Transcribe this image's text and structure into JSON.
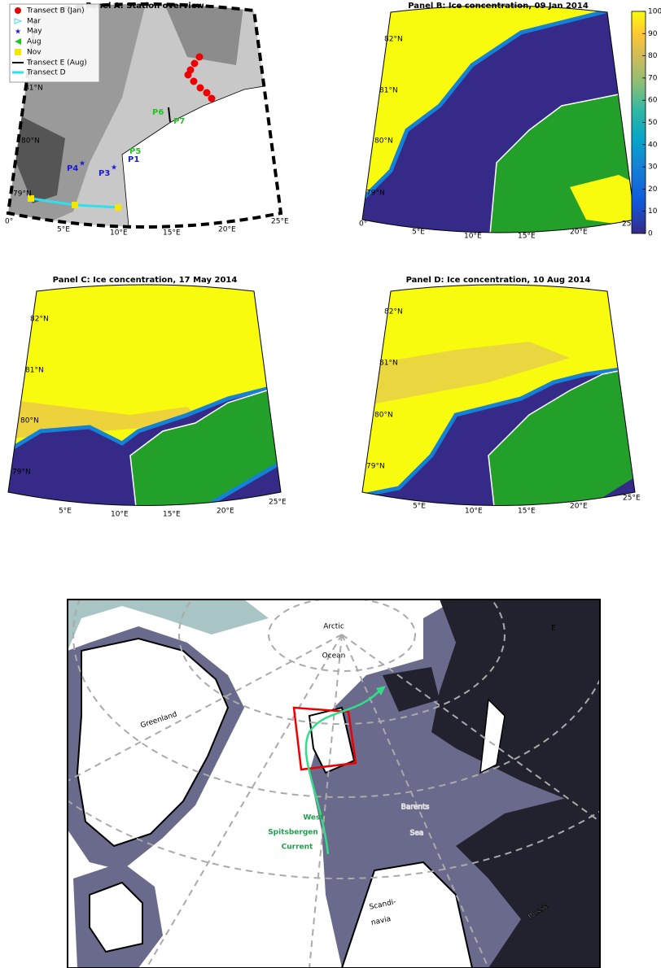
{
  "panel_a": {
    "title": "Panel A: Station overview",
    "legend": [
      "Transect B (Jan)",
      "Mar",
      "May",
      "Aug",
      "Nov",
      "Transect E (Aug)",
      "Transect D"
    ],
    "stations": [
      "P1",
      "P3",
      "P4",
      "P5",
      "P6",
      "P7"
    ],
    "lat_labels": [
      "81°N",
      "80°N",
      "79°N"
    ],
    "lon_labels": [
      "0°",
      "5°E",
      "10°E",
      "15°E",
      "20°E",
      "25°E"
    ]
  },
  "panel_b": {
    "title": "Panel B: Ice concentration, 09 Jan 2014",
    "lat_labels": [
      "82°N",
      "81°N",
      "80°N",
      "79°N"
    ],
    "lon_labels": [
      "0°",
      "5°E",
      "10°E",
      "15°E",
      "20°E",
      "25°"
    ],
    "colorbar": {
      "range": [
        0,
        100
      ],
      "ticks": [
        0,
        10,
        20,
        30,
        40,
        50,
        60,
        70,
        80,
        90,
        100
      ]
    }
  },
  "panel_c": {
    "title": "Panel C: Ice concentration, 17 May 2014",
    "lat_labels": [
      "82°N",
      "81°N",
      "80°N",
      "79°N"
    ],
    "lon_labels": [
      "5°E",
      "10°E",
      "15°E",
      "20°E",
      "25°E"
    ]
  },
  "panel_d": {
    "title": "Panel D: Ice concentration, 10 Aug 2014",
    "lat_labels": [
      "82°N",
      "81°N",
      "80°N",
      "79°N"
    ],
    "lon_labels": [
      "5°E",
      "10°E",
      "15°E",
      "20°E",
      "25°E"
    ]
  },
  "panel_e": {
    "letter": "E",
    "arctic": [
      "Arctic",
      "Ocean"
    ],
    "greenland": "Greenland",
    "current": [
      "West",
      "Spitsbergen",
      "Current"
    ],
    "barents": [
      "Barents",
      "Sea"
    ],
    "scandinavia": [
      "Scandi-",
      "navia"
    ],
    "russia": "Russia"
  }
}
